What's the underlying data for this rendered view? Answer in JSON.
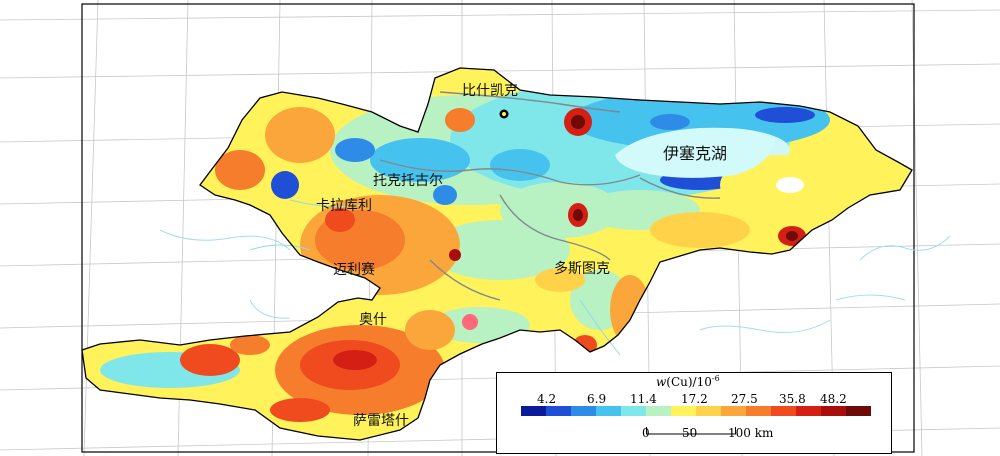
{
  "labels": {
    "bishkek": "比什凯克",
    "tokmok": "托克托古尔",
    "karakol_left": "卡拉库利",
    "mailuu": "迈利赛",
    "issyk_kul": "伊塞克湖",
    "naryn": "多斯图克",
    "osh": "奥什",
    "sary_tash": "萨雷塔什"
  },
  "legend": {
    "title": "w(Cu)/10⁻⁶",
    "ticks": [
      "4.2",
      "6.9",
      "11.4",
      "17.2",
      "27.5",
      "35.8",
      "48.2"
    ],
    "colors": [
      "#0b1a9a",
      "#1f4fd6",
      "#2e8be8",
      "#46c2ef",
      "#7fe6ea",
      "#b8f1c2",
      "#fff25a",
      "#ffd24a",
      "#fba63a",
      "#f57d2c",
      "#ef4b1f",
      "#d41f14",
      "#a80f0c",
      "#6e0a08"
    ]
  },
  "scale": {
    "l0": "0",
    "l50": "50",
    "l100": "100 km"
  }
}
